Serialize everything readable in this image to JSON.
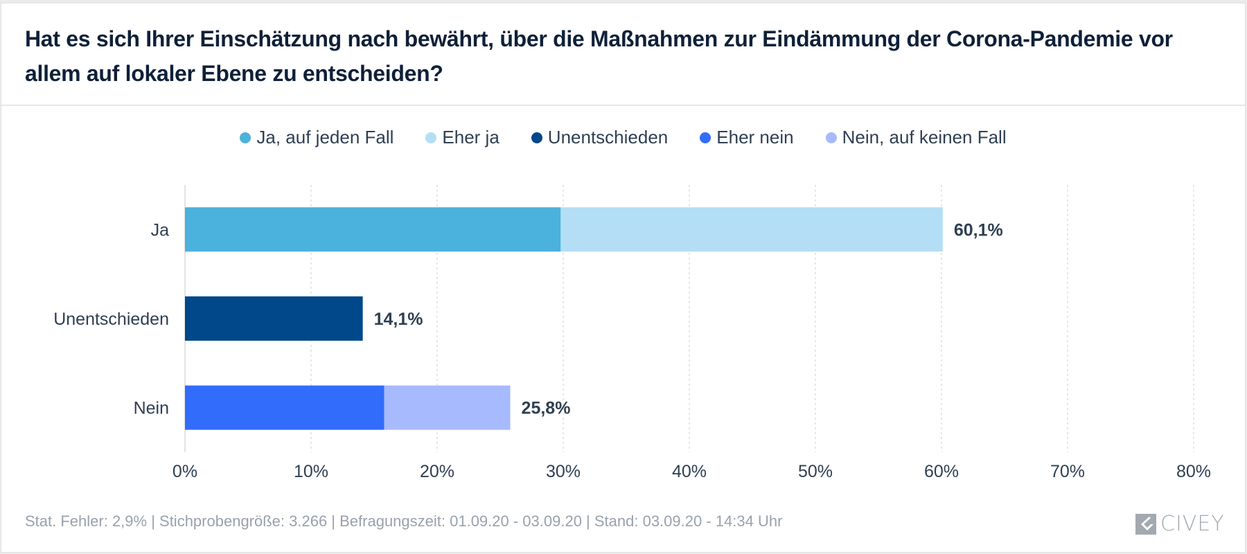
{
  "title": "Hat es sich Ihrer Einschätzung nach bewährt, über die Maßnahmen zur Eindämmung der Corona-Pandemie vor allem auf lokaler Ebene zu entscheiden?",
  "legend": [
    {
      "label": "Ja, auf jeden Fall",
      "color": "#4bb1dd"
    },
    {
      "label": "Eher ja",
      "color": "#b3def6"
    },
    {
      "label": "Unentschieden",
      "color": "#00488a"
    },
    {
      "label": "Eher nein",
      "color": "#326cfa"
    },
    {
      "label": "Nein, auf keinen Fall",
      "color": "#a6bafd"
    }
  ],
  "chart_data": {
    "type": "bar",
    "orientation": "horizontal",
    "stacked": true,
    "title": "Hat es sich Ihrer Einschätzung nach bewährt, über die Maßnahmen zur Eindämmung der Corona-Pandemie vor allem auf lokaler Ebene zu entscheiden?",
    "categories": [
      "Ja",
      "Unentschieden",
      "Nein"
    ],
    "series": [
      {
        "name": "Ja, auf jeden Fall",
        "color": "#4bb1dd",
        "values": [
          29.8,
          0,
          0
        ]
      },
      {
        "name": "Eher ja",
        "color": "#b3def6",
        "values": [
          30.3,
          0,
          0
        ]
      },
      {
        "name": "Unentschieden",
        "color": "#00488a",
        "values": [
          0,
          14.1,
          0
        ]
      },
      {
        "name": "Eher nein",
        "color": "#326cfa",
        "values": [
          0,
          0,
          15.8
        ]
      },
      {
        "name": "Nein, auf keinen Fall",
        "color": "#a6bafd",
        "values": [
          0,
          0,
          10.0
        ]
      }
    ],
    "totals": [
      60.1,
      14.1,
      25.8
    ],
    "total_labels": [
      "60,1%",
      "14,1%",
      "25,8%"
    ],
    "xlim": [
      0,
      80
    ],
    "xticks": [
      0,
      10,
      20,
      30,
      40,
      50,
      60,
      70,
      80
    ],
    "xtick_labels": [
      "0%",
      "10%",
      "20%",
      "30%",
      "40%",
      "50%",
      "60%",
      "70%",
      "80%"
    ],
    "grid": "vertical-dotted",
    "legend_position": "top-center",
    "xlabel": "",
    "ylabel": ""
  },
  "footer": {
    "text": "Stat. Fehler: 2,9% | Stichprobengröße: 3.266 | Befragungszeit: 01.09.20 - 03.09.20 | Stand: 03.09.20 - 14:34 Uhr"
  },
  "logo": {
    "text": "CIVEY"
  }
}
